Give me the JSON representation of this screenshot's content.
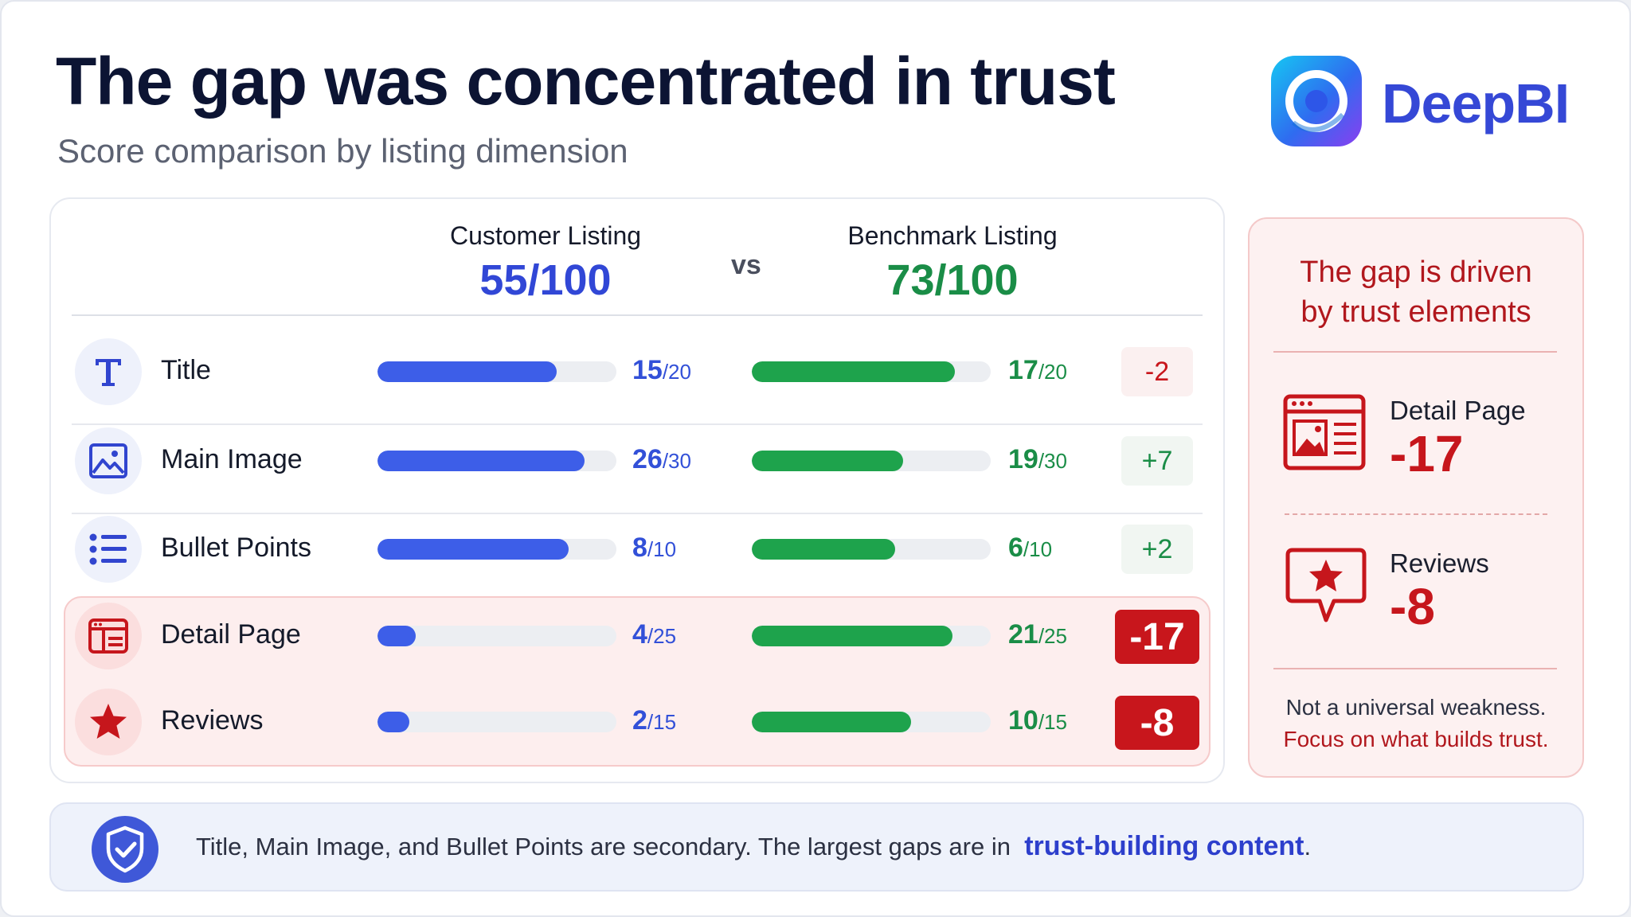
{
  "header": {
    "title": "The gap was concentrated in trust",
    "subtitle": "Score comparison by listing dimension",
    "brand": "DeepBI"
  },
  "columns": {
    "customer": {
      "label": "Customer Listing",
      "score": "55/100",
      "color": "#3147d6"
    },
    "vs": "vs",
    "benchmark": {
      "label": "Benchmark Listing",
      "score": "73/100",
      "color": "#1a8d47"
    }
  },
  "colors": {
    "customer_bar": "#3d5ee8",
    "benchmark_bar": "#1ea34c",
    "customer_text": "#3250d8",
    "benchmark_text": "#1a8d47",
    "positive_delta": "#1a8d47",
    "negative_delta": "#c8161c",
    "highlight": "#c8161c"
  },
  "chart_data": {
    "type": "bar",
    "categories": [
      "Title",
      "Main Image",
      "Bullet Points",
      "Detail Page",
      "Reviews"
    ],
    "max": [
      20,
      30,
      10,
      25,
      15
    ],
    "series": [
      {
        "name": "Customer Listing",
        "values": [
          15,
          26,
          8,
          4,
          2
        ]
      },
      {
        "name": "Benchmark Listing",
        "values": [
          17,
          19,
          6,
          21,
          10
        ]
      }
    ],
    "deltas": [
      "-2",
      "+7",
      "+2",
      "-17",
      "-8"
    ],
    "highlighted": [
      false,
      false,
      false,
      true,
      true
    ],
    "icons": [
      "title-icon",
      "image-icon",
      "list-icon",
      "browser-icon",
      "star-icon"
    ]
  },
  "sidebar": {
    "heading_line1": "The gap is driven",
    "heading_line2": "by trust elements",
    "items": [
      {
        "label": "Detail Page",
        "value": "-17",
        "icon": "detail-page-icon"
      },
      {
        "label": "Reviews",
        "value": "-8",
        "icon": "review-chat-star-icon"
      }
    ],
    "footer_line1": "Not a universal weakness.",
    "footer_line2": "Focus on what builds trust."
  },
  "footer": {
    "note": "Title, Main Image, and Bullet Points are secondary. The largest gaps are in",
    "emphasis": "trust-building content",
    "suffix": ".",
    "icon": "shield-check-icon"
  }
}
